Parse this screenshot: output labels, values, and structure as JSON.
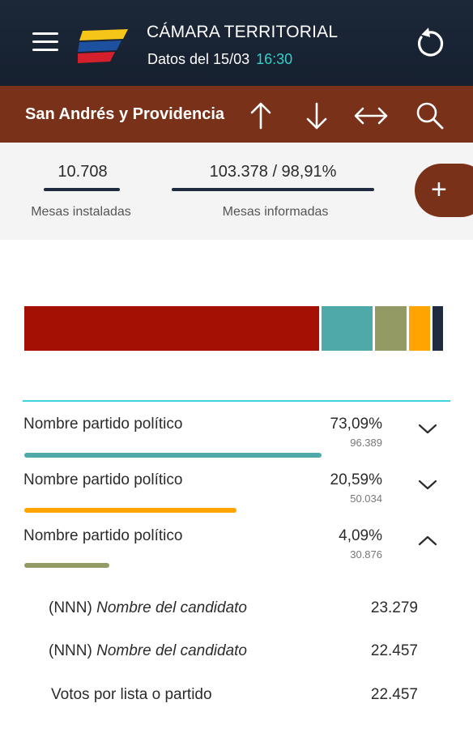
{
  "header": {
    "title": "CÁMARA TERRITORIAL",
    "data_label": "Datos del 15/03",
    "data_time": "16:30",
    "menu_icon": "hamburger-menu-icon",
    "refresh_icon": "refresh-icon",
    "logo_colors": [
      "#f5c518",
      "#1e50a0",
      "#d4202c"
    ]
  },
  "toolbar": {
    "region": "San Andrés y Providencia",
    "icons": [
      "arrow-up-icon",
      "arrow-down-icon",
      "arrows-horizontal-icon",
      "search-icon"
    ]
  },
  "stats": {
    "mesas_instaladas_value": "10.708",
    "mesas_instaladas_label": "Mesas instaladas",
    "mesas_informadas_value": "103.378 / 98,91%",
    "mesas_informadas_label": "Mesas informadas",
    "add_label": "+"
  },
  "stacked_bar": {
    "segments": [
      {
        "share": 0.7,
        "color": "#a51004"
      },
      {
        "share": 0.125,
        "color": "#4fa9a8"
      },
      {
        "share": 0.08,
        "color": "#949a63"
      },
      {
        "share": 0.055,
        "color": "#ffa400"
      },
      {
        "share": 0.03,
        "color": "#1f2b3f"
      }
    ]
  },
  "colors": {
    "header_bg": "#1c2738",
    "toolbar_bg": "#7a3119",
    "accent_cyan": "#3fd3df",
    "time_color": "#34d0c8"
  },
  "parties": [
    {
      "name": "Nombre partido político",
      "pct": "73,09%",
      "votes": "96.389",
      "bar_color": "#4fa9a8",
      "bar_share": 0.7,
      "expanded": false
    },
    {
      "name": "Nombre partido político",
      "pct": "20,59%",
      "votes": "50.034",
      "bar_color": "#ffa400",
      "bar_share": 0.5,
      "expanded": false
    },
    {
      "name": "Nombre partido político",
      "pct": "4,09%",
      "votes": "30.876",
      "bar_color": "#949a63",
      "bar_share": 0.2,
      "expanded": true
    }
  ],
  "candidates": [
    {
      "code": "(NNN)",
      "name": "Nombre del candidato",
      "votes": "23.279"
    },
    {
      "code": "(NNN)",
      "name": "Nombre del candidato",
      "votes": "22.457"
    }
  ],
  "list_votes": {
    "label": "Votos por lista o partido",
    "votes": "22.457"
  }
}
